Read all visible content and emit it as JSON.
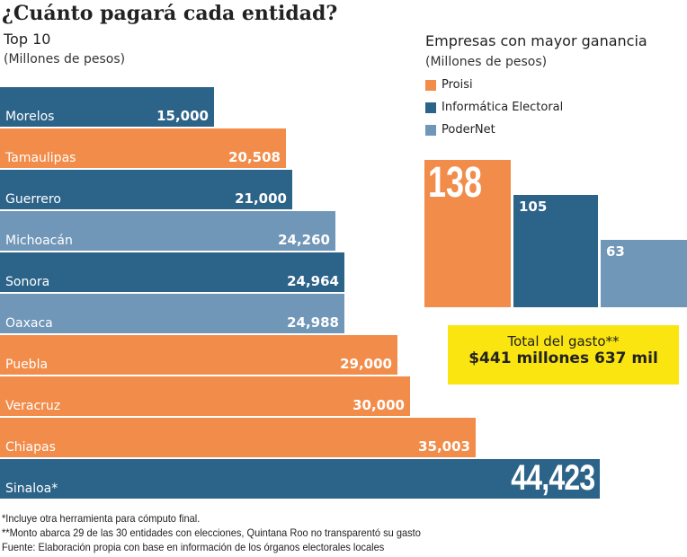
{
  "title": "¿Cuánto pagará cada entidad?",
  "left": {
    "subtitle": "Top 10",
    "units": "(Millones de pesos)"
  },
  "right": {
    "subtitle": "Empresas con mayor ganancia",
    "units": "(Millones de pesos)"
  },
  "colors": {
    "dark_blue": "#2c6389",
    "orange": "#f28c4a",
    "light_blue": "#7096b8",
    "yellow": "#fbe510"
  },
  "chart_data": [
    {
      "type": "bar",
      "orientation": "horizontal",
      "title": "Top 10",
      "ylabel": "(Millones de pesos)",
      "categories": [
        "Morelos",
        "Tamaulipas",
        "Guerrero",
        "Michoacán",
        "Sonora",
        "Oaxaca",
        "Puebla",
        "Veracruz",
        "Chiapas",
        "Sinaloa*"
      ],
      "values": [
        15000,
        20508,
        21000,
        24260,
        24964,
        24988,
        29000,
        30000,
        35003,
        44423
      ],
      "labels": [
        "15,000",
        "20,508",
        "21,000",
        "24,260",
        "24,964",
        "24,988",
        "29,000",
        "30,000",
        "35,003",
        "44,423"
      ],
      "bar_colors": [
        "dark_blue",
        "orange",
        "dark_blue",
        "light_blue",
        "dark_blue",
        "light_blue",
        "orange",
        "orange",
        "orange",
        "dark_blue"
      ]
    },
    {
      "type": "bar",
      "title": "Empresas con mayor ganancia",
      "ylabel": "(Millones de pesos)",
      "categories": [
        "Proisi",
        "Informática Electoral",
        "PoderNet"
      ],
      "values": [
        138,
        105,
        63
      ],
      "labels": [
        "138",
        "105",
        "63"
      ],
      "bar_colors": [
        "orange",
        "dark_blue",
        "light_blue"
      ],
      "legend": "top-left"
    }
  ],
  "total": {
    "label": "Total del gasto**",
    "value": "$441 millones 637 mil"
  },
  "footnotes": [
    "*Incluye otra herramienta para cómputo final.",
    "**Monto abarca 29 de las 30 entidades con elecciones, Quintana Roo no transparentó su gasto",
    "Fuente: Elaboración propia con base en información de los órganos electorales locales"
  ]
}
